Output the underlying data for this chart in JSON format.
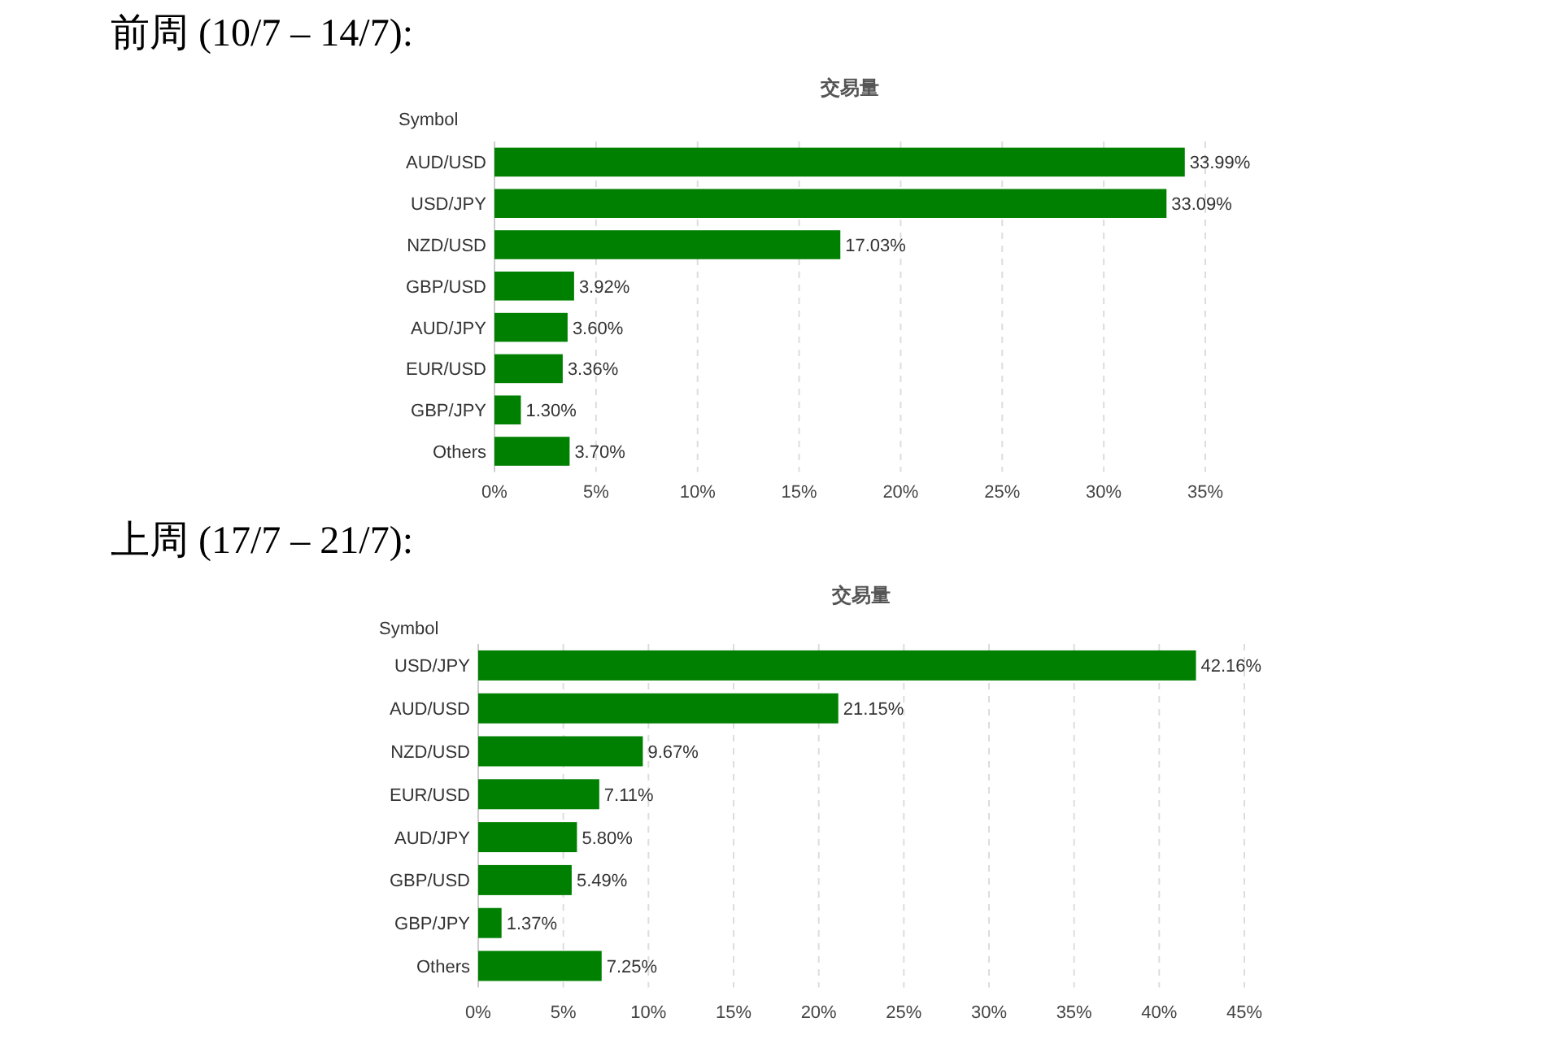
{
  "chart_data": [
    {
      "type": "bar",
      "orientation": "horizontal",
      "title": "前周 (10/7 – 14/7):",
      "subtitle": "交易量",
      "ylabel": "Symbol",
      "categories": [
        "AUD/USD",
        "USD/JPY",
        "NZD/USD",
        "GBP/USD",
        "AUD/JPY",
        "EUR/USD",
        "GBP/JPY",
        "Others"
      ],
      "values": [
        33.99,
        33.09,
        17.03,
        3.92,
        3.6,
        3.36,
        1.3,
        3.7
      ],
      "value_labels": [
        "33.99%",
        "33.09%",
        "17.03%",
        "3.92%",
        "3.60%",
        "3.36%",
        "1.30%",
        "3.70%"
      ],
      "color": "#008000",
      "xlim": [
        0,
        35
      ],
      "xticks": [
        {
          "value": 0,
          "label": "0%"
        },
        {
          "value": 5,
          "label": "5%"
        },
        {
          "value": 10,
          "label": "10%"
        },
        {
          "value": 15,
          "label": "15%"
        },
        {
          "value": 20,
          "label": "20%"
        },
        {
          "value": 25,
          "label": "25%"
        },
        {
          "value": 30,
          "label": "30%"
        },
        {
          "value": 35,
          "label": "35%"
        }
      ],
      "grid": "x"
    },
    {
      "type": "bar",
      "orientation": "horizontal",
      "title": "上周 (17/7 – 21/7):",
      "subtitle": "交易量",
      "ylabel": "Symbol",
      "categories": [
        "USD/JPY",
        "AUD/USD",
        "NZD/USD",
        "EUR/USD",
        "AUD/JPY",
        "GBP/USD",
        "GBP/JPY",
        "Others"
      ],
      "values": [
        42.16,
        21.15,
        9.67,
        7.11,
        5.8,
        5.49,
        1.37,
        7.25
      ],
      "value_labels": [
        "42.16%",
        "21.15%",
        "9.67%",
        "7.11%",
        "5.80%",
        "5.49%",
        "1.37%",
        "7.25%"
      ],
      "color": "#008000",
      "xlim": [
        0,
        45
      ],
      "xticks": [
        {
          "value": 0,
          "label": "0%"
        },
        {
          "value": 5,
          "label": "5%"
        },
        {
          "value": 10,
          "label": "10%"
        },
        {
          "value": 15,
          "label": "15%"
        },
        {
          "value": 20,
          "label": "20%"
        },
        {
          "value": 25,
          "label": "25%"
        },
        {
          "value": 30,
          "label": "30%"
        },
        {
          "value": 35,
          "label": "35%"
        },
        {
          "value": 40,
          "label": "40%"
        },
        {
          "value": 45,
          "label": "45%"
        }
      ],
      "grid": "x"
    }
  ]
}
